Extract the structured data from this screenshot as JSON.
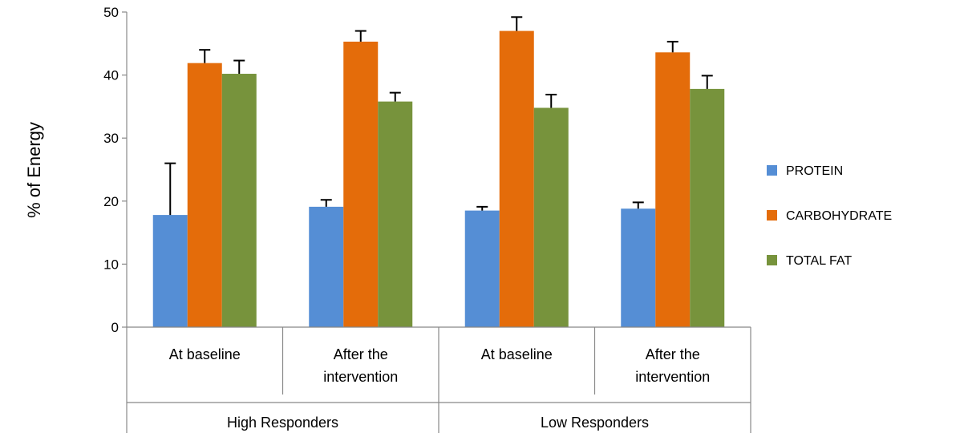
{
  "chart_data": {
    "type": "bar",
    "title": "",
    "ylabel": "% of Energy",
    "ylim": [
      0,
      50
    ],
    "yticks": [
      "0",
      "10",
      "20",
      "30",
      "40",
      "50"
    ],
    "categories": [
      {
        "label_lines": [
          "At baseline"
        ],
        "group": "High Responders"
      },
      {
        "label_lines": [
          "After the",
          "intervention"
        ],
        "group": "High Responders"
      },
      {
        "label_lines": [
          "At baseline"
        ],
        "group": "Low Responders"
      },
      {
        "label_lines": [
          "After the",
          "intervention"
        ],
        "group": "Low Responders"
      }
    ],
    "groups": [
      "High Responders",
      "Low Responders"
    ],
    "series": [
      {
        "name": "PROTEIN",
        "color": "#558ED5",
        "values": [
          17.8,
          19.1,
          18.5,
          18.8
        ],
        "errors": [
          8.2,
          1.1,
          0.6,
          1.0
        ]
      },
      {
        "name": "CARBOHYDRATE",
        "color": "#E46C0A",
        "values": [
          41.9,
          45.3,
          47.0,
          43.6
        ],
        "errors": [
          2.1,
          1.7,
          2.2,
          1.7
        ]
      },
      {
        "name": "TOTAL FAT",
        "color": "#77933C",
        "values": [
          40.2,
          35.8,
          34.8,
          37.8
        ],
        "errors": [
          2.1,
          1.4,
          2.1,
          2.1
        ]
      }
    ],
    "grid": false,
    "error_bars": true,
    "legend_position": "right"
  }
}
